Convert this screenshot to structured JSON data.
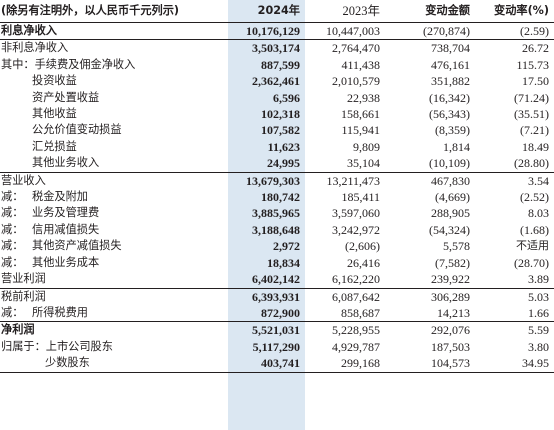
{
  "header": {
    "unit_note": "(除另有注明外，以人民币千元列示)",
    "col_current": "2024年",
    "col_prior": "2023年",
    "col_change": "变动金额",
    "col_rate": "变动率(%)"
  },
  "rows": [
    {
      "prefix": "",
      "label": "利息净收入",
      "current": "10,176,129",
      "prior": "10,447,003",
      "change": "(270,874)",
      "rate": "(2.59)"
    },
    {
      "prefix": "",
      "label": "非利息净收入",
      "current": "3,503,174",
      "prior": "2,764,470",
      "change": "738,704",
      "rate": "26.72"
    },
    {
      "prefix": "其中：",
      "label": "手续费及佣金净收入",
      "current": "887,599",
      "prior": "411,438",
      "change": "476,161",
      "rate": "115.73"
    },
    {
      "prefix": "",
      "label": "投资收益",
      "current": "2,362,461",
      "prior": "2,010,579",
      "change": "351,882",
      "rate": "17.50"
    },
    {
      "prefix": "",
      "label": "资产处置收益",
      "current": "6,596",
      "prior": "22,938",
      "change": "(16,342)",
      "rate": "(71.24)"
    },
    {
      "prefix": "",
      "label": "其他收益",
      "current": "102,318",
      "prior": "158,661",
      "change": "(56,343)",
      "rate": "(35.51)"
    },
    {
      "prefix": "",
      "label": "公允价值变动损益",
      "current": "107,582",
      "prior": "115,941",
      "change": "(8,359)",
      "rate": "(7.21)"
    },
    {
      "prefix": "",
      "label": "汇兑损益",
      "current": "11,623",
      "prior": "9,809",
      "change": "1,814",
      "rate": "18.49"
    },
    {
      "prefix": "",
      "label": "其他业务收入",
      "current": "24,995",
      "prior": "35,104",
      "change": "(10,109)",
      "rate": "(28.80)"
    },
    {
      "prefix": "",
      "label": "营业收入",
      "current": "13,679,303",
      "prior": "13,211,473",
      "change": "467,830",
      "rate": "3.54"
    },
    {
      "prefix": "减：",
      "label": "税金及附加",
      "current": "180,742",
      "prior": "185,411",
      "change": "(4,669)",
      "rate": "(2.52)"
    },
    {
      "prefix": "减：",
      "label": "业务及管理费",
      "current": "3,885,965",
      "prior": "3,597,060",
      "change": "288,905",
      "rate": "8.03"
    },
    {
      "prefix": "减：",
      "label": "信用减值损失",
      "current": "3,188,648",
      "prior": "3,242,972",
      "change": "(54,324)",
      "rate": "(1.68)"
    },
    {
      "prefix": "减：",
      "label": "其他资产减值损失",
      "current": "2,972",
      "prior": "(2,606)",
      "change": "5,578",
      "rate": "不适用"
    },
    {
      "prefix": "减：",
      "label": "其他业务成本",
      "current": "18,834",
      "prior": "26,416",
      "change": "(7,582)",
      "rate": "(28.70)"
    },
    {
      "prefix": "",
      "label": "营业利润",
      "current": "6,402,142",
      "prior": "6,162,220",
      "change": "239,922",
      "rate": "3.89"
    },
    {
      "prefix": "",
      "label": "税前利润",
      "current": "6,393,931",
      "prior": "6,087,642",
      "change": "306,289",
      "rate": "5.03"
    },
    {
      "prefix": "减：",
      "label": "所得税费用",
      "current": "872,900",
      "prior": "858,687",
      "change": "14,213",
      "rate": "1.66"
    },
    {
      "prefix": "",
      "label": "净利润",
      "current": "5,521,031",
      "prior": "5,228,955",
      "change": "292,076",
      "rate": "5.59"
    },
    {
      "prefix": "归属于：",
      "label": "上市公司股东",
      "current": "5,117,290",
      "prior": "4,929,787",
      "change": "187,503",
      "rate": "3.80"
    },
    {
      "prefix": "",
      "label": "少数股东",
      "current": "403,741",
      "prior": "299,168",
      "change": "104,573",
      "rate": "34.95"
    }
  ]
}
